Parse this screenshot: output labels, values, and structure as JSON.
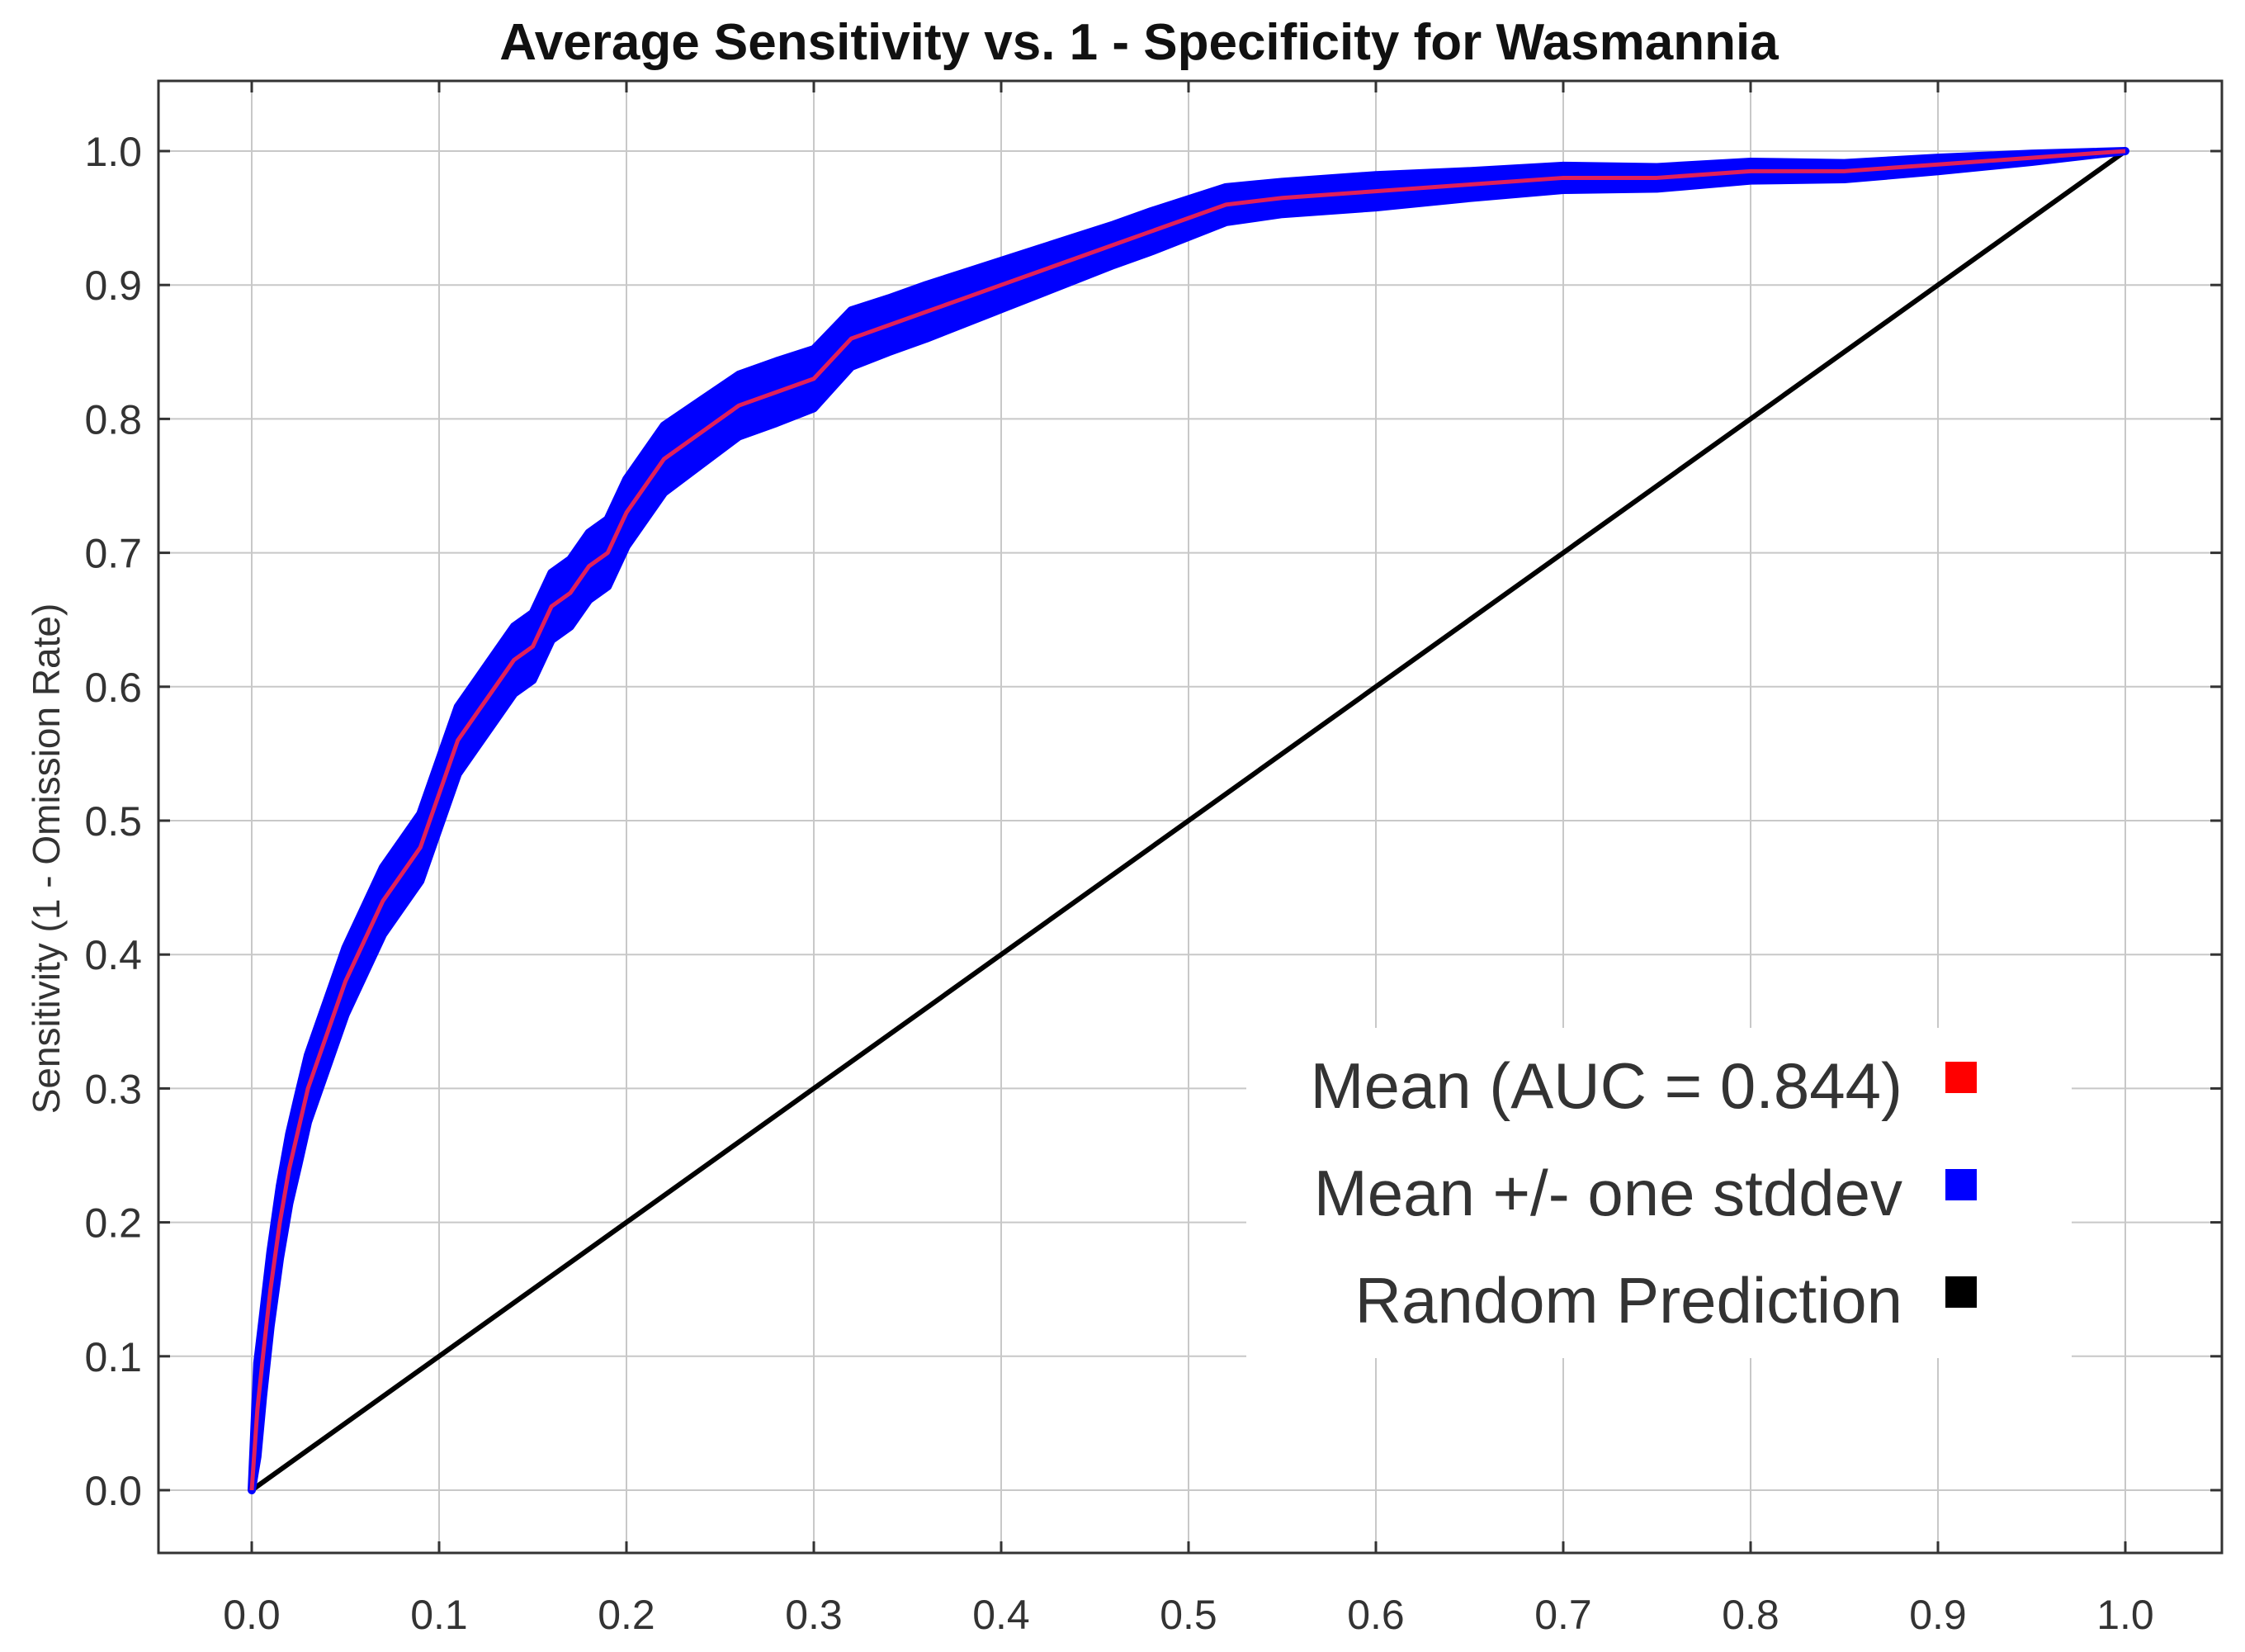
{
  "chart_data": {
    "type": "line",
    "title": "Average Sensitivity vs. 1 - Specificity for Wasmannia",
    "xlabel": "",
    "ylabel": "Sensitivity (1 - Omission Rate)",
    "xlim": [
      0,
      1
    ],
    "ylim": [
      0,
      1
    ],
    "xticks": [
      "0.0",
      "0.1",
      "0.2",
      "0.3",
      "0.4",
      "0.5",
      "0.6",
      "0.7",
      "0.8",
      "0.9",
      "1.0"
    ],
    "yticks": [
      "0.0",
      "0.1",
      "0.2",
      "0.3",
      "0.4",
      "0.5",
      "0.6",
      "0.7",
      "0.8",
      "0.9",
      "1.0"
    ],
    "grid": true,
    "legend_position": "bottom-right",
    "legend": [
      {
        "label": "Mean (AUC = 0.844)",
        "color": "#ff0000"
      },
      {
        "label": "Mean +/- one stddev",
        "color": "#0000ff"
      },
      {
        "label": "Random Prediction",
        "color": "#000000"
      }
    ],
    "series": [
      {
        "name": "Mean (AUC = 0.844)",
        "color": "#e0205a",
        "x": [
          0,
          0.003,
          0.006,
          0.01,
          0.015,
          0.02,
          0.025,
          0.03,
          0.04,
          0.05,
          0.06,
          0.07,
          0.08,
          0.09,
          0.1,
          0.11,
          0.12,
          0.13,
          0.14,
          0.15,
          0.16,
          0.17,
          0.18,
          0.19,
          0.2,
          0.22,
          0.24,
          0.26,
          0.28,
          0.3,
          0.32,
          0.34,
          0.36,
          0.38,
          0.4,
          0.42,
          0.44,
          0.46,
          0.48,
          0.5,
          0.52,
          0.55,
          0.6,
          0.65,
          0.7,
          0.75,
          0.8,
          0.85,
          0.9,
          0.95,
          1.0
        ],
        "y": [
          0,
          0.06,
          0.1,
          0.15,
          0.2,
          0.24,
          0.27,
          0.3,
          0.34,
          0.38,
          0.41,
          0.44,
          0.46,
          0.48,
          0.52,
          0.56,
          0.58,
          0.6,
          0.62,
          0.63,
          0.66,
          0.67,
          0.69,
          0.7,
          0.73,
          0.77,
          0.79,
          0.81,
          0.82,
          0.83,
          0.86,
          0.87,
          0.88,
          0.89,
          0.9,
          0.91,
          0.92,
          0.93,
          0.94,
          0.95,
          0.96,
          0.965,
          0.97,
          0.975,
          0.98,
          0.98,
          0.985,
          0.985,
          0.99,
          0.995,
          1.0
        ]
      },
      {
        "name": "Mean +/- one stddev",
        "color": "#0000ff",
        "band_halfwidth": [
          0,
          0.035,
          0.03,
          0.028,
          0.027,
          0.026,
          0.026,
          0.025,
          0.025,
          0.025,
          0.025,
          0.025,
          0.025,
          0.025,
          0.025,
          0.025,
          0.025,
          0.025,
          0.025,
          0.025,
          0.025,
          0.025,
          0.025,
          0.025,
          0.025,
          0.025,
          0.024,
          0.023,
          0.023,
          0.022,
          0.021,
          0.02,
          0.02,
          0.019,
          0.018,
          0.017,
          0.016,
          0.015,
          0.015,
          0.014,
          0.013,
          0.012,
          0.012,
          0.01,
          0.009,
          0.008,
          0.007,
          0.006,
          0.005,
          0.003,
          0
        ]
      },
      {
        "name": "Random Prediction",
        "color": "#000000",
        "x": [
          0,
          1
        ],
        "y": [
          0,
          1
        ]
      }
    ]
  }
}
